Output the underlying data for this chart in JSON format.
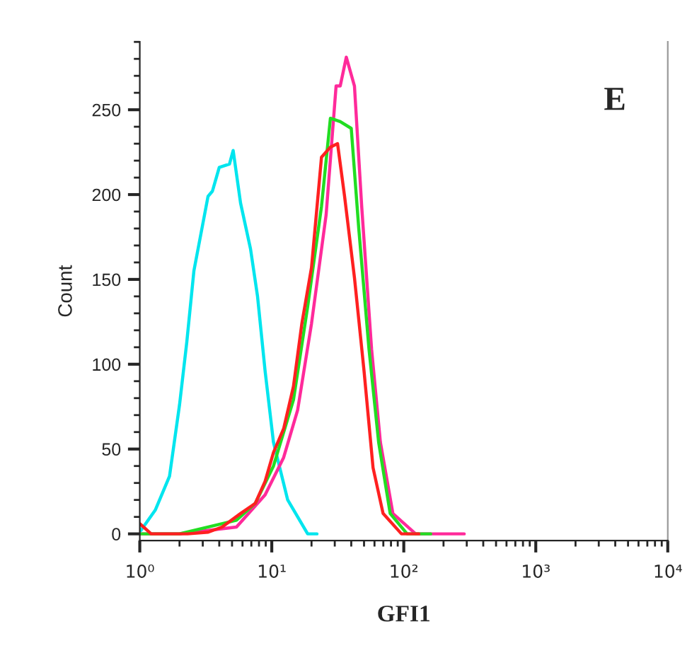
{
  "chart_data": {
    "type": "line",
    "xlabel": "GFI1",
    "ylabel": "Count",
    "log": "x",
    "xlim": [
      1,
      10000
    ],
    "xticks": [
      {
        "value": 1,
        "label": "10⁰"
      },
      {
        "value": 10,
        "label": "10¹"
      },
      {
        "value": 100,
        "label": "10²"
      },
      {
        "value": 1000,
        "label": "10³"
      },
      {
        "value": 10000,
        "label": "10⁴"
      }
    ],
    "ylim": [
      -4,
      290
    ],
    "yticks": [
      0,
      50,
      100,
      150,
      200,
      250
    ],
    "grid": false,
    "legend": false,
    "marker": "none",
    "line_style": "solid",
    "annotations": [
      {
        "text": "E"
      }
    ],
    "series": [
      {
        "color": "#00e5ee",
        "x": [
          1,
          1.02,
          1.31,
          1.68,
          2.0,
          2.27,
          2.57,
          3.29,
          3.55,
          4.0,
          4.78,
          5.1,
          5.8,
          6.9,
          7.8,
          8.9,
          10.3,
          13.2,
          18.7,
          22
        ],
        "values": [
          3,
          2,
          14,
          34,
          76,
          113,
          155,
          199,
          202,
          216,
          218,
          226,
          195,
          168,
          140,
          96,
          54,
          20,
          0,
          0
        ]
      },
      {
        "color": "#ff2a9a",
        "x": [
          1,
          2,
          5.4,
          8.9,
          12.3,
          15.7,
          20,
          25.8,
          30.7,
          33,
          36.7,
          42.3,
          48,
          57,
          66.5,
          82.7,
          123,
          287
        ],
        "values": [
          0,
          0,
          4,
          23,
          45,
          73,
          124,
          188,
          264,
          264,
          281,
          264,
          193,
          109,
          54,
          12,
          0,
          0
        ]
      },
      {
        "color": "#22dd22",
        "x": [
          1,
          2,
          5.4,
          7.5,
          10.3,
          14.6,
          18.7,
          23.8,
          27.8,
          33,
          40,
          45.6,
          54.5,
          64.5,
          78.9,
          106,
          160
        ],
        "values": [
          0,
          0,
          8,
          18,
          40,
          79,
          134,
          193,
          245,
          243,
          239,
          180,
          109,
          54,
          12,
          0,
          0
        ]
      },
      {
        "color": "#ff2020",
        "x": [
          1,
          1.22,
          2.3,
          3.3,
          4.2,
          5.8,
          7.5,
          8.9,
          10.3,
          12.3,
          14.6,
          16.9,
          20,
          23.8,
          27.8,
          31.5,
          35.6,
          42.3,
          50,
          58.5,
          69.7,
          96,
          130
        ],
        "values": [
          6,
          0,
          0,
          1,
          4,
          12,
          18,
          31,
          48,
          62,
          87,
          124,
          157,
          222,
          228,
          230,
          199,
          151,
          96,
          39,
          12,
          0,
          0
        ]
      }
    ]
  }
}
